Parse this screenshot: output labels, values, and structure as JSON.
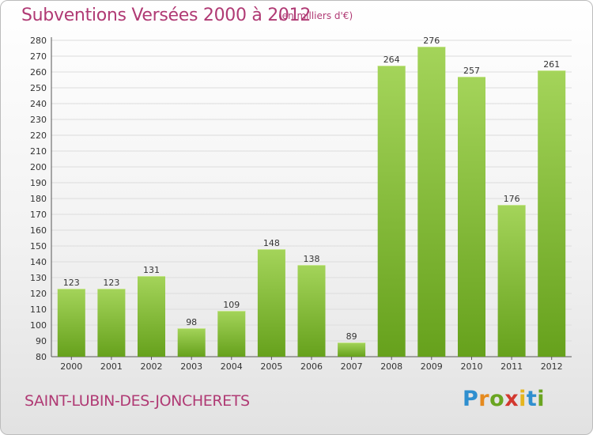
{
  "header": {
    "title": "Subventions Versées 2000 à 2012",
    "unit": "(en milliers d'€)"
  },
  "footer": {
    "commune": "SAINT-LUBIN-DES-JONCHERETS",
    "logo_text": "Proxiti"
  },
  "colors": {
    "bar_light": "#a4d45a",
    "bar_dark": "#66a11c",
    "grid": "#dcdcdc",
    "title": "#b03a74"
  },
  "chart_data": {
    "type": "bar",
    "title": "Subventions Versées 2000 à 2012",
    "categories": [
      "2000",
      "2001",
      "2002",
      "2003",
      "2004",
      "2005",
      "2006",
      "2007",
      "2008",
      "2009",
      "2010",
      "2011",
      "2012"
    ],
    "values": [
      123,
      123,
      131,
      98,
      109,
      148,
      138,
      89,
      264,
      276,
      257,
      176,
      261
    ],
    "ylim": [
      80,
      280
    ],
    "yticks": [
      80,
      90,
      100,
      110,
      120,
      130,
      140,
      150,
      160,
      170,
      180,
      190,
      200,
      210,
      220,
      230,
      240,
      250,
      260,
      270,
      280
    ],
    "grid": true,
    "data_labels": true
  }
}
